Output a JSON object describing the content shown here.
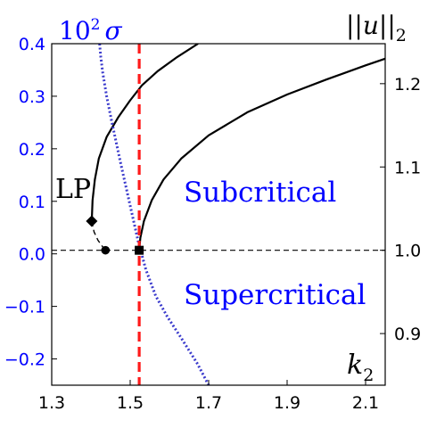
{
  "chart_data": {
    "type": "line",
    "xlabel": "k_2",
    "xlim": [
      1.3,
      2.15
    ],
    "x_ticks": [
      "1.3",
      "1.5",
      "1.7",
      "1.9",
      "2.1"
    ],
    "left_axis": {
      "label_base": "10",
      "label_exp": "2",
      "label_symbol": "σ",
      "ylim": [
        -0.25,
        0.4
      ],
      "ticks": [
        "0.4",
        "0.3",
        "0.2",
        "0.1",
        "0.0",
        "−0.1",
        "−0.2"
      ],
      "color": "#0000ff"
    },
    "right_axis": {
      "label": "||u||_2",
      "ylim": [
        0.838,
        1.248
      ],
      "ticks": [
        "1.2",
        "1.1",
        "1.0",
        "0.9"
      ]
    },
    "series": [
      {
        "style": "solid",
        "color": "#000000",
        "axis": "right",
        "x": [
          1.402,
          1.404,
          1.41,
          1.42,
          1.44,
          1.47,
          1.5,
          1.53,
          1.57,
          1.62,
          1.673
        ],
        "y": [
          1.035,
          1.06,
          1.085,
          1.11,
          1.136,
          1.16,
          1.18,
          1.198,
          1.215,
          1.232,
          1.248
        ]
      },
      {
        "style": "dashed",
        "color": "#000000",
        "axis": "right",
        "x": [
          1.402,
          1.408,
          1.418,
          1.43,
          1.437
        ],
        "y": [
          1.035,
          1.022,
          1.012,
          1.004,
          1.0
        ]
      },
      {
        "style": "solid",
        "color": "#000000",
        "axis": "right",
        "x": [
          1.523,
          1.526,
          1.535,
          1.555,
          1.585,
          1.63,
          1.7,
          1.8,
          1.9,
          2.0,
          2.1,
          2.15
        ],
        "y": [
          1.0,
          1.015,
          1.035,
          1.06,
          1.085,
          1.11,
          1.138,
          1.166,
          1.187,
          1.205,
          1.222,
          1.23
        ]
      },
      {
        "style": "dotted",
        "color": "#3a3acc",
        "axis": "left",
        "x": [
          1.422,
          1.425,
          1.43,
          1.44,
          1.452,
          1.465,
          1.478,
          1.49,
          1.505,
          1.52,
          1.54,
          1.565,
          1.595,
          1.63,
          1.672,
          1.7
        ],
        "y": [
          0.4,
          0.375,
          0.345,
          0.3,
          0.255,
          0.21,
          0.165,
          0.125,
          0.075,
          0.025,
          -0.03,
          -0.08,
          -0.12,
          -0.16,
          -0.21,
          -0.25
        ]
      }
    ],
    "vertical_line": {
      "x": 1.523,
      "style": "dashed",
      "color": "#ff1a1a"
    },
    "horizontal_line": {
      "y_right": 1.0,
      "style": "dashed",
      "color": "#000000"
    },
    "markers": [
      {
        "shape": "diamond",
        "x": 1.402,
        "y_right": 1.035,
        "label": "LP"
      },
      {
        "shape": "circle",
        "x": 1.437,
        "y_right": 1.0
      },
      {
        "shape": "square",
        "x": 1.523,
        "y_right": 1.0
      }
    ],
    "region_labels": [
      {
        "text": "Subcritical",
        "color": "#0000ff"
      },
      {
        "text": "Supercritical",
        "color": "#0000ff"
      }
    ]
  }
}
